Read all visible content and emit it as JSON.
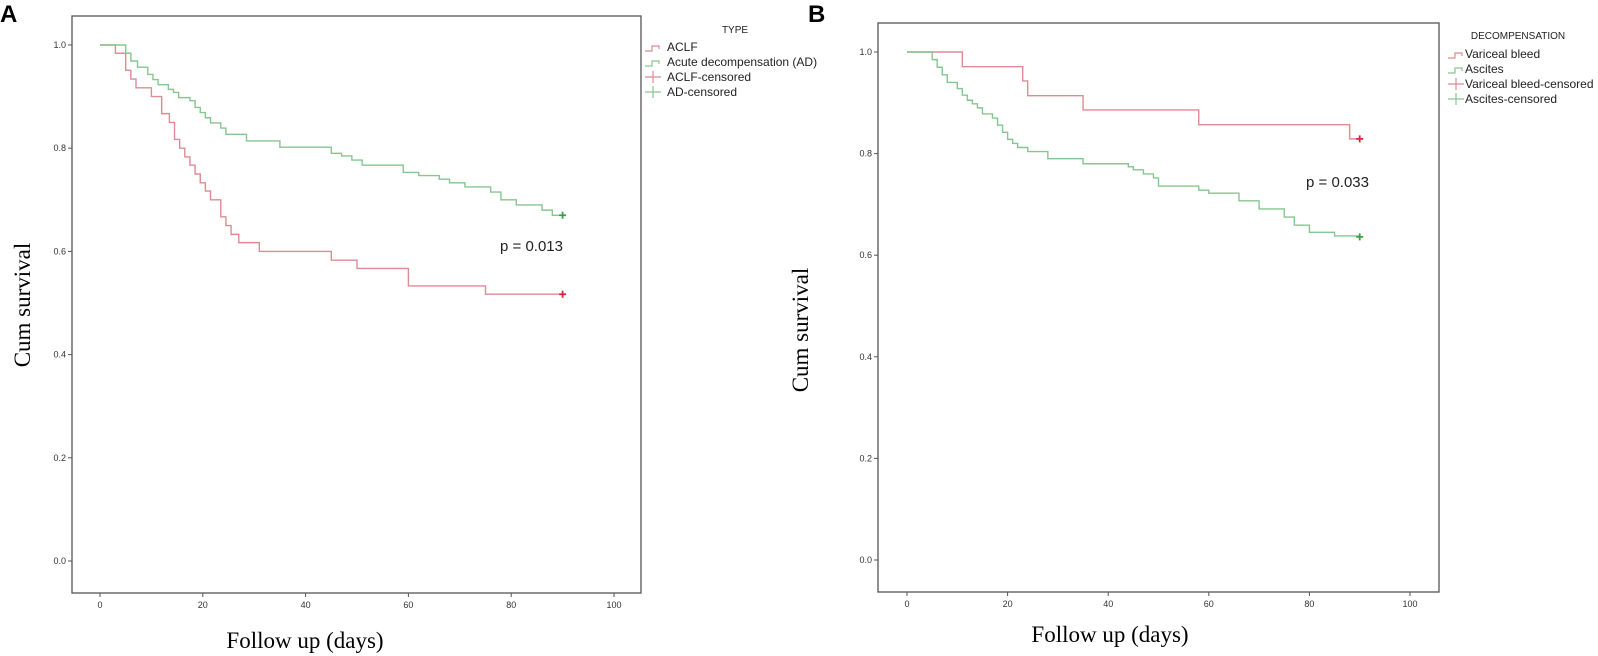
{
  "colors": {
    "red_line": "#de8b93",
    "red_censor": "#d4283f",
    "green_line": "#86c690",
    "green_censor": "#3a9f4a",
    "axis": "#555555"
  },
  "chart_data": [
    {
      "panel_label": "A",
      "type": "line",
      "step": true,
      "xlabel": "Follow up (days)",
      "ylabel": "Cum survival",
      "xlim": [
        0,
        100
      ],
      "ylim": [
        0,
        1
      ],
      "xticks": [
        "0",
        "20",
        "40",
        "60",
        "80",
        "100"
      ],
      "yticks": [
        "0.0",
        "0.2",
        "0.4",
        "0.6",
        "0.8",
        "1.0"
      ],
      "grid": false,
      "legend_title": "TYPE",
      "legend_position": "right",
      "legend": [
        "ACLF",
        "Acute decompensation (AD)",
        "ACLF-censored",
        "AD-censored"
      ],
      "annotation": "p = 0.013",
      "series": [
        {
          "name": "ACLF",
          "color_key": "red",
          "x": [
            0,
            3,
            5,
            6,
            7,
            10,
            12,
            13.5,
            14.5,
            15.5,
            16.5,
            17.5,
            18.5,
            19.5,
            20.5,
            21.5,
            23.5,
            24.5,
            25.5,
            27,
            31,
            45,
            50,
            60,
            75,
            90
          ],
          "y": [
            1,
            0.984,
            0.951,
            0.934,
            0.917,
            0.9,
            0.867,
            0.85,
            0.817,
            0.8,
            0.783,
            0.767,
            0.75,
            0.733,
            0.717,
            0.7,
            0.667,
            0.65,
            0.633,
            0.617,
            0.6,
            0.583,
            0.567,
            0.533,
            0.517,
            0.517
          ],
          "censored": [
            [
              90,
              0.517
            ]
          ]
        },
        {
          "name": "Acute decompensation (AD)",
          "color_key": "green",
          "x": [
            0,
            5,
            6,
            7.3,
            9.3,
            10.3,
            11.3,
            13.3,
            14.3,
            15.3,
            17.5,
            18.5,
            19.5,
            20.5,
            21.5,
            23.5,
            24.5,
            28.5,
            35,
            45,
            47,
            49,
            51,
            59,
            62,
            66,
            68,
            71,
            76,
            78,
            81,
            86,
            88,
            90
          ],
          "y": [
            1,
            0.984,
            0.969,
            0.957,
            0.943,
            0.933,
            0.923,
            0.914,
            0.908,
            0.898,
            0.892,
            0.879,
            0.869,
            0.859,
            0.849,
            0.839,
            0.827,
            0.814,
            0.802,
            0.79,
            0.785,
            0.777,
            0.767,
            0.753,
            0.747,
            0.74,
            0.733,
            0.725,
            0.715,
            0.7,
            0.69,
            0.68,
            0.67,
            0.67
          ],
          "censored": [
            [
              90,
              0.67
            ]
          ]
        }
      ]
    },
    {
      "panel_label": "B",
      "type": "line",
      "step": true,
      "xlabel": "Follow up (days)",
      "ylabel": "Cum survival",
      "xlim": [
        0,
        100
      ],
      "ylim": [
        0,
        1
      ],
      "xticks": [
        "0",
        "20",
        "40",
        "60",
        "80",
        "100"
      ],
      "yticks": [
        "0.0",
        "0.2",
        "0.4",
        "0.6",
        "0.8",
        "1.0"
      ],
      "grid": false,
      "legend_title": "DECOMPENSATION",
      "legend_position": "right",
      "legend": [
        "Variceal bleed",
        "Ascites",
        "Variceal bleed-censored",
        "Ascites-censored"
      ],
      "annotation": "p = 0.033",
      "series": [
        {
          "name": "Variceal bleed",
          "color_key": "red",
          "x": [
            0,
            11,
            23,
            24,
            35,
            58,
            88,
            90
          ],
          "y": [
            1,
            0.971,
            0.943,
            0.914,
            0.886,
            0.857,
            0.829,
            0.829
          ],
          "censored": [
            [
              90,
              0.829
            ]
          ]
        },
        {
          "name": "Ascites",
          "color_key": "green",
          "x": [
            0,
            5,
            6,
            7,
            8,
            10,
            11,
            12,
            13,
            14,
            15,
            17,
            18,
            19,
            20,
            21,
            22,
            24,
            28,
            35,
            44,
            45,
            47,
            49,
            50,
            58,
            60,
            66,
            70,
            75,
            77,
            80,
            85,
            90
          ],
          "y": [
            1,
            0.985,
            0.97,
            0.955,
            0.94,
            0.928,
            0.915,
            0.905,
            0.898,
            0.89,
            0.878,
            0.87,
            0.856,
            0.842,
            0.828,
            0.82,
            0.812,
            0.804,
            0.79,
            0.78,
            0.774,
            0.768,
            0.76,
            0.752,
            0.736,
            0.728,
            0.722,
            0.707,
            0.691,
            0.675,
            0.659,
            0.645,
            0.638,
            0.636
          ],
          "censored": [
            [
              90,
              0.636
            ]
          ]
        }
      ]
    }
  ]
}
